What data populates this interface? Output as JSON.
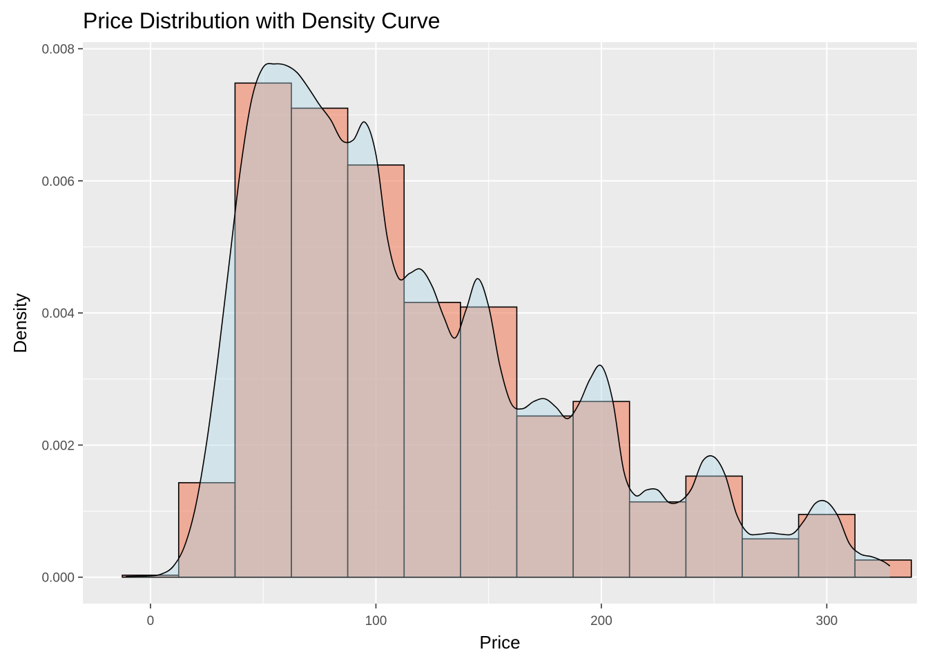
{
  "chart_data": {
    "type": "bar",
    "title": "Price Distribution with Density Curve",
    "xlabel": "Price",
    "ylabel": "Density",
    "xlim": [
      -30,
      340
    ],
    "ylim": [
      -0.0004,
      0.0081
    ],
    "x_ticks": [
      0,
      100,
      200,
      300
    ],
    "y_ticks": [
      0.0,
      0.002,
      0.004,
      0.006,
      0.008
    ],
    "x_tick_labels": [
      "0",
      "100",
      "200",
      "300"
    ],
    "y_tick_labels": [
      "0.000",
      "0.002",
      "0.004",
      "0.006",
      "0.008"
    ],
    "grid": true,
    "colors": {
      "panel": "#ebebeb",
      "grid": "#ffffff",
      "histogram_fill": "#f08060",
      "histogram_alpha": 0.6,
      "density_fill": "#add8e6",
      "density_alpha": 0.4,
      "outline": "#000000"
    },
    "histogram": {
      "bin_width": 25,
      "bins": [
        {
          "x_start": -12.5,
          "x_end": 12.5,
          "density": 3e-05
        },
        {
          "x_start": 12.5,
          "x_end": 37.5,
          "density": 0.00143
        },
        {
          "x_start": 37.5,
          "x_end": 62.5,
          "density": 0.00748
        },
        {
          "x_start": 62.5,
          "x_end": 87.5,
          "density": 0.0071
        },
        {
          "x_start": 87.5,
          "x_end": 112.5,
          "density": 0.00624
        },
        {
          "x_start": 112.5,
          "x_end": 137.5,
          "density": 0.00416
        },
        {
          "x_start": 137.5,
          "x_end": 162.5,
          "density": 0.00409
        },
        {
          "x_start": 162.5,
          "x_end": 187.5,
          "density": 0.00244
        },
        {
          "x_start": 187.5,
          "x_end": 212.5,
          "density": 0.00266
        },
        {
          "x_start": 212.5,
          "x_end": 237.5,
          "density": 0.00114
        },
        {
          "x_start": 237.5,
          "x_end": 262.5,
          "density": 0.00153
        },
        {
          "x_start": 262.5,
          "x_end": 287.5,
          "density": 0.00058
        },
        {
          "x_start": 287.5,
          "x_end": 312.5,
          "density": 0.00095
        },
        {
          "x_start": 312.5,
          "x_end": 337.5,
          "density": 0.00026
        }
      ]
    },
    "density_curve": {
      "x": [
        -11,
        0,
        5,
        10,
        15,
        20,
        25,
        30,
        35,
        40,
        45,
        50,
        55,
        60,
        65,
        70,
        75,
        80,
        85,
        90,
        95,
        100,
        105,
        110,
        115,
        120,
        125,
        130,
        135,
        140,
        145,
        150,
        155,
        160,
        165,
        170,
        175,
        180,
        185,
        190,
        195,
        200,
        205,
        210,
        215,
        220,
        225,
        230,
        235,
        240,
        245,
        250,
        255,
        260,
        265,
        270,
        275,
        280,
        285,
        290,
        295,
        300,
        305,
        310,
        315,
        320,
        325,
        328
      ],
      "y": [
        1e-05,
        2e-05,
        5e-05,
        0.00016,
        0.00046,
        0.00107,
        0.00206,
        0.00334,
        0.00478,
        0.0062,
        0.00725,
        0.00772,
        0.00777,
        0.00775,
        0.00764,
        0.00741,
        0.00715,
        0.00692,
        0.00661,
        0.00662,
        0.00689,
        0.0064,
        0.00515,
        0.00453,
        0.0046,
        0.00466,
        0.0044,
        0.00395,
        0.00362,
        0.00405,
        0.00452,
        0.0041,
        0.0032,
        0.00263,
        0.00255,
        0.00266,
        0.0027,
        0.00257,
        0.0024,
        0.00262,
        0.003,
        0.0032,
        0.00268,
        0.0016,
        0.00124,
        0.00132,
        0.00132,
        0.00113,
        0.00115,
        0.00134,
        0.00176,
        0.00182,
        0.00154,
        0.00095,
        0.00067,
        0.00065,
        0.00067,
        0.00065,
        0.00066,
        0.00086,
        0.00112,
        0.00114,
        0.00092,
        0.00051,
        0.00035,
        0.00031,
        0.00024,
        0.00017
      ]
    }
  }
}
